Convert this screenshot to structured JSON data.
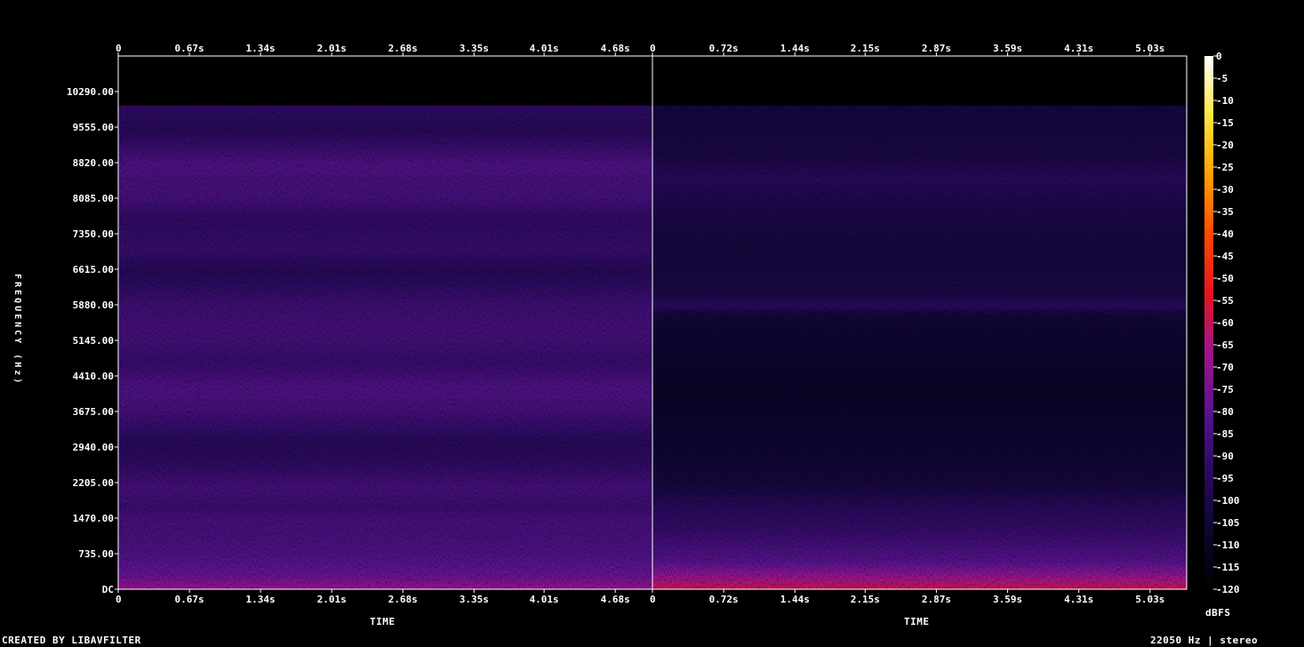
{
  "chart_data": {
    "type": "heatmap",
    "subtype": "spectrogram",
    "ylabel": "FREQUENCY (Hz)",
    "xlabel": "TIME",
    "colorbar_label": "dBFS",
    "footer_left": "CREATED BY LIBAVFILTER",
    "footer_right": "22050 Hz | stereo",
    "freq_range": [
      0,
      11025
    ],
    "freq_ticks": [
      "DC",
      "735.00",
      "1470.00",
      "2205.00",
      "2940.00",
      "3675.00",
      "4410.00",
      "5145.00",
      "5880.00",
      "6615.00",
      "7350.00",
      "8085.00",
      "8820.00",
      "9555.00",
      "10290.00"
    ],
    "freq_tick_values": [
      0,
      735,
      1470,
      2205,
      2940,
      3675,
      4410,
      5145,
      5880,
      6615,
      7350,
      8085,
      8820,
      9555,
      10290
    ],
    "content_cutoff_hz": 10000,
    "colorbar_ticks": [
      "0",
      "-5",
      "-10",
      "-15",
      "-20",
      "-25",
      "-30",
      "-35",
      "-40",
      "-45",
      "-50",
      "-55",
      "-60",
      "-65",
      "-70",
      "-75",
      "-80",
      "-85",
      "-90",
      "-95",
      "-100",
      "-105",
      "-110",
      "-115",
      "-120"
    ],
    "colorbar_range_db": [
      -120,
      0
    ],
    "colormap": [
      "#000000",
      "#0d0630",
      "#2a0a5e",
      "#5a1490",
      "#a0148c",
      "#e6141e",
      "#ff4a00",
      "#ffa000",
      "#ffe640",
      "#ffffff"
    ],
    "panels": [
      {
        "name": "left channel",
        "time_ticks": [
          "0",
          "0.67s",
          "1.34s",
          "2.01s",
          "2.68s",
          "3.35s",
          "4.01s",
          "4.68s"
        ],
        "time_tick_values": [
          0,
          0.67,
          1.34,
          2.01,
          2.68,
          3.35,
          4.01,
          4.68
        ],
        "duration_s": 5.03,
        "band_levels_db": [
          {
            "freq": 0,
            "db": -68
          },
          {
            "freq": 300,
            "db": -78
          },
          {
            "freq": 800,
            "db": -84
          },
          {
            "freq": 1470,
            "db": -86
          },
          {
            "freq": 1700,
            "db": -89
          },
          {
            "freq": 2100,
            "db": -86
          },
          {
            "freq": 2600,
            "db": -92
          },
          {
            "freq": 3000,
            "db": -95
          },
          {
            "freq": 3400,
            "db": -90
          },
          {
            "freq": 3800,
            "db": -85
          },
          {
            "freq": 4200,
            "db": -84
          },
          {
            "freq": 4700,
            "db": -90
          },
          {
            "freq": 5300,
            "db": -86
          },
          {
            "freq": 5900,
            "db": -88
          },
          {
            "freq": 6600,
            "db": -96
          },
          {
            "freq": 7000,
            "db": -90
          },
          {
            "freq": 7700,
            "db": -92
          },
          {
            "freq": 8100,
            "db": -86
          },
          {
            "freq": 8800,
            "db": -84
          },
          {
            "freq": 9500,
            "db": -95
          },
          {
            "freq": 10000,
            "db": -92
          }
        ]
      },
      {
        "name": "right channel",
        "time_ticks": [
          "0",
          "0.72s",
          "1.44s",
          "2.15s",
          "2.87s",
          "3.59s",
          "4.31s",
          "5.03s"
        ],
        "time_tick_values": [
          0,
          0.72,
          1.44,
          2.15,
          2.87,
          3.59,
          4.31,
          5.03
        ],
        "duration_s": 5.4,
        "band_levels_db": [
          {
            "freq": 0,
            "db": -58
          },
          {
            "freq": 200,
            "db": -66
          },
          {
            "freq": 600,
            "db": -82
          },
          {
            "freq": 1200,
            "db": -90
          },
          {
            "freq": 1700,
            "db": -95
          },
          {
            "freq": 2200,
            "db": -103
          },
          {
            "freq": 3000,
            "db": -106
          },
          {
            "freq": 4000,
            "db": -109
          },
          {
            "freq": 5000,
            "db": -107
          },
          {
            "freq": 5700,
            "db": -104
          },
          {
            "freq": 5850,
            "db": -93
          },
          {
            "freq": 6100,
            "db": -100
          },
          {
            "freq": 7000,
            "db": -103
          },
          {
            "freq": 8000,
            "db": -99
          },
          {
            "freq": 8500,
            "db": -94
          },
          {
            "freq": 9000,
            "db": -101
          },
          {
            "freq": 10000,
            "db": -103
          }
        ]
      }
    ]
  }
}
